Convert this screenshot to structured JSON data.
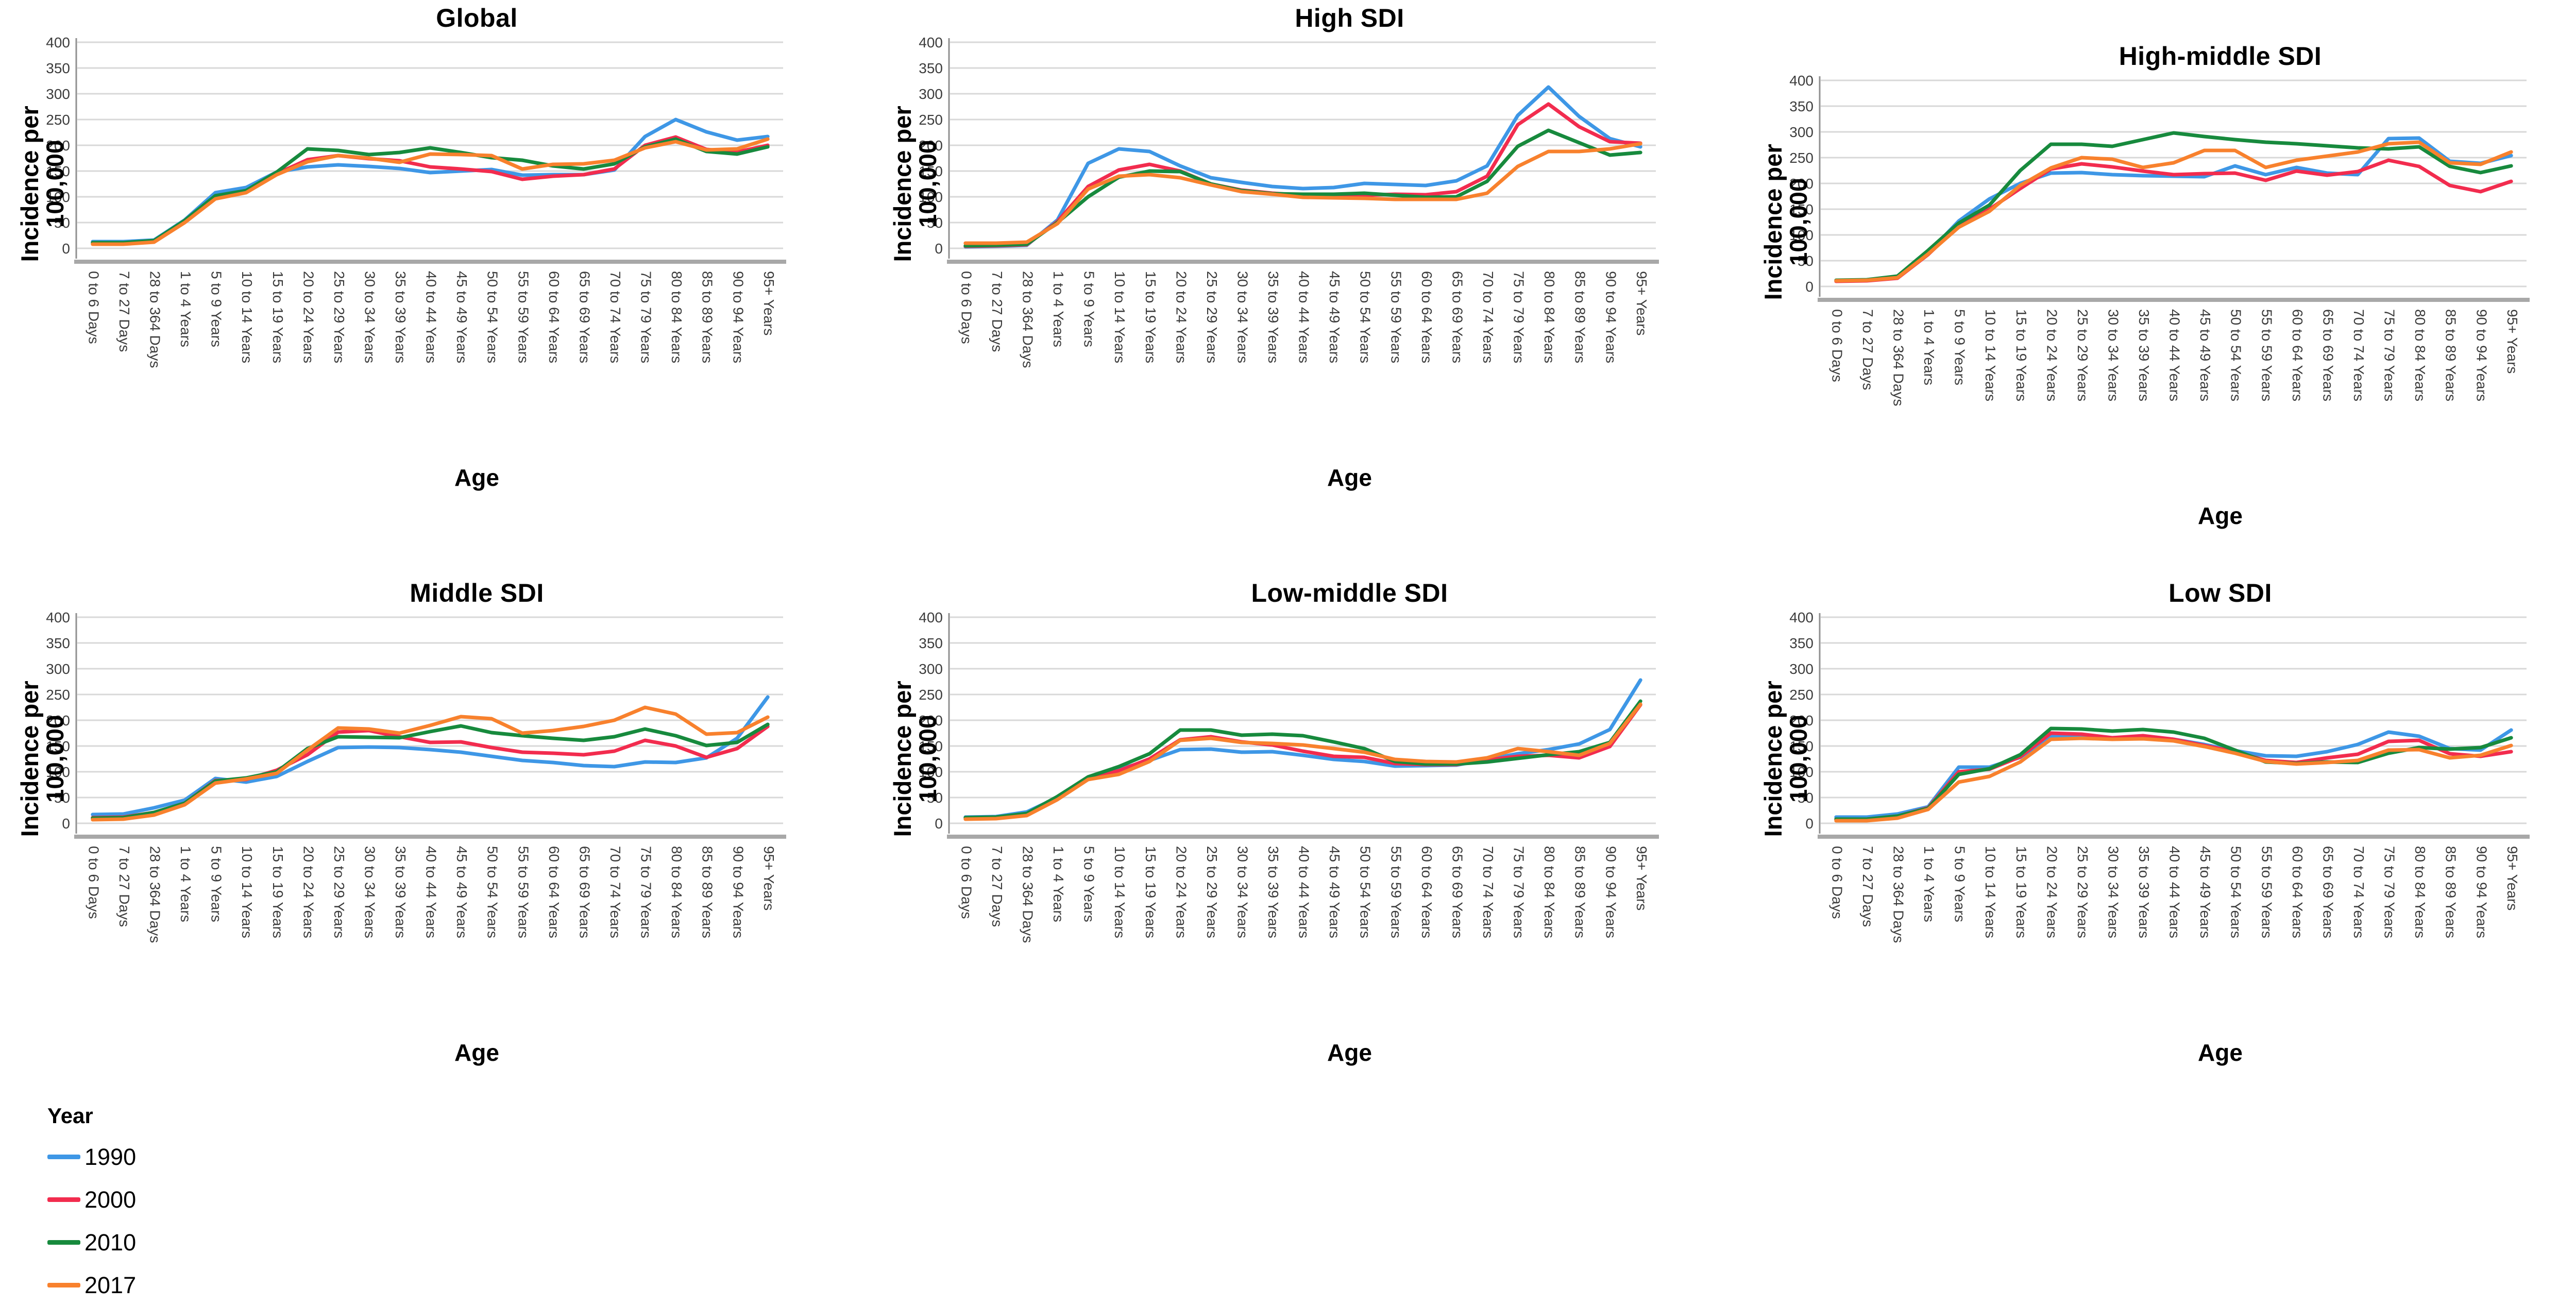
{
  "axes": {
    "ylabel_line1": "Incidence per",
    "ylabel_line2": "100,000",
    "xlabel": "Age"
  },
  "legend": {
    "title": "Year",
    "position": "bottom-left",
    "entries": [
      {
        "label": "1990",
        "color": "#3E97E6"
      },
      {
        "label": "2000",
        "color": "#F22C4E"
      },
      {
        "label": "2010",
        "color": "#178A3D"
      },
      {
        "label": "2017",
        "color": "#F8812D"
      }
    ]
  },
  "chart_data": {
    "type": "line",
    "grid": true,
    "ylim": [
      0,
      400
    ],
    "yticks": [
      0,
      50,
      100,
      150,
      200,
      250,
      300,
      350,
      400
    ],
    "categories": [
      "0 to 6 Days",
      "7 to 27 Days",
      "28 to 364 Days",
      "1 to 4 Years",
      "5 to 9 Years",
      "10 to 14 Years",
      "15 to 19 Years",
      "20 to 24 Years",
      "25 to 29 Years",
      "30 to 34 Years",
      "35 to 39 Years",
      "40 to 44 Years",
      "45 to 49 Years",
      "50 to 54 Years",
      "55 to 59 Years",
      "60 to 64 Years",
      "65 to 69 Years",
      "70 to 74 Years",
      "75 to 79 Years",
      "80 to 84 Years",
      "85 to 89 Years",
      "90 to 94 Years",
      "95+ Years"
    ],
    "panels": [
      {
        "title": "Global",
        "series": [
          {
            "name": "1990",
            "values": [
              13,
              13,
              16,
              55,
              108,
              118,
              148,
              158,
              162,
              159,
              155,
              147,
              150,
              153,
              142,
              143,
              143,
              152,
              217,
              250,
              226,
              210,
              217
            ]
          },
          {
            "name": "2000",
            "values": [
              10,
              10,
              14,
              53,
              100,
              112,
              145,
              172,
              180,
              174,
              170,
              158,
              154,
              149,
              134,
              140,
              143,
              154,
              200,
              216,
              192,
              187,
              200
            ]
          },
          {
            "name": "2010",
            "values": [
              11,
              11,
              15,
              54,
              102,
              112,
              148,
              193,
              190,
              182,
              186,
              195,
              186,
              176,
              171,
              160,
              154,
              164,
              197,
              212,
              188,
              183,
              197
            ]
          },
          {
            "name": "2017",
            "values": [
              8,
              8,
              12,
              50,
              96,
              108,
              143,
              168,
              180,
              175,
              167,
              183,
              182,
              180,
              154,
              163,
              164,
              171,
              195,
              207,
              191,
              193,
              212
            ]
          }
        ]
      },
      {
        "title": "High SDI",
        "series": [
          {
            "name": "1990",
            "values": [
              3,
              4,
              6,
              55,
              165,
              193,
              188,
              160,
              137,
              128,
              120,
              116,
              118,
              126,
              124,
              122,
              131,
              160,
              258,
              313,
              256,
              213,
              197
            ]
          },
          {
            "name": "2000",
            "values": [
              4,
              5,
              7,
              52,
              120,
              152,
              163,
              150,
              125,
              113,
              107,
              103,
              103,
              103,
              105,
              104,
              110,
              140,
              240,
              280,
              236,
              207,
              204
            ]
          },
          {
            "name": "2010",
            "values": [
              5,
              6,
              8,
              50,
              100,
              138,
              150,
              149,
              125,
              112,
              106,
              105,
              105,
              107,
              103,
              99,
              100,
              130,
              198,
              229,
              205,
              181,
              186
            ]
          },
          {
            "name": "2017",
            "values": [
              10,
              10,
              12,
              48,
              115,
              140,
              143,
              137,
              123,
              110,
              105,
              99,
              98,
              97,
              95,
              95,
              95,
              107,
              159,
              188,
              188,
              193,
              203
            ]
          }
        ]
      },
      {
        "title": "High-middle SDI",
        "series": [
          {
            "name": "1990",
            "values": [
              11,
              12,
              18,
              65,
              127,
              170,
              200,
              220,
              221,
              217,
              215,
              214,
              213,
              234,
              217,
              231,
              220,
              217,
              287,
              288,
              243,
              239,
              254
            ]
          },
          {
            "name": "2000",
            "values": [
              10,
              11,
              16,
              62,
              118,
              150,
              190,
              228,
              238,
              232,
              224,
              217,
              219,
              220,
              206,
              224,
              216,
              223,
              245,
              233,
              196,
              184,
              204
            ]
          },
          {
            "name": "2010",
            "values": [
              12,
              13,
              20,
              70,
              123,
              158,
              225,
              276,
              276,
              272,
              285,
              298,
              291,
              285,
              280,
              277,
              273,
              269,
              267,
              271,
              233,
              221,
              234
            ]
          },
          {
            "name": "2017",
            "values": [
              11,
              12,
              17,
              63,
              115,
              146,
              196,
              230,
              250,
              247,
              231,
              240,
              264,
              264,
              231,
              245,
              253,
              261,
              277,
              280,
              240,
              237,
              261
            ]
          }
        ]
      },
      {
        "title": "Middle SDI",
        "series": [
          {
            "name": "1990",
            "values": [
              17,
              18,
              30,
              45,
              87,
              80,
              91,
              120,
              147,
              148,
              147,
              143,
              138,
              130,
              122,
              118,
              112,
              110,
              119,
              118,
              127,
              165,
              245
            ]
          },
          {
            "name": "2000",
            "values": [
              11,
              12,
              21,
              39,
              83,
              85,
              103,
              133,
              177,
              180,
              168,
              157,
              158,
              147,
              138,
              136,
              133,
              140,
              161,
              150,
              128,
              145,
              188
            ]
          },
          {
            "name": "2010",
            "values": [
              10,
              11,
              21,
              39,
              82,
              88,
              100,
              145,
              168,
              167,
              166,
              178,
              189,
              176,
              170,
              165,
              161,
              168,
              183,
              170,
              151,
              157,
              192
            ]
          },
          {
            "name": "2017",
            "values": [
              7,
              8,
              16,
              36,
              78,
              86,
              97,
              142,
              185,
              183,
              175,
              190,
              207,
              203,
              175,
              180,
              188,
              200,
              225,
              212,
              173,
              176,
              206
            ]
          }
        ]
      },
      {
        "title": "Low-middle SDI",
        "series": [
          {
            "name": "1990",
            "values": [
              12,
              13,
              22,
              50,
              85,
              105,
              122,
              143,
              144,
              138,
              139,
              132,
              124,
              120,
              111,
              112,
              113,
              124,
              135,
              143,
              154,
              182,
              278
            ]
          },
          {
            "name": "2000",
            "values": [
              10,
              11,
              18,
              48,
              88,
              102,
              125,
              162,
              168,
              158,
              152,
              140,
              130,
              128,
              116,
              114,
              114,
              123,
              130,
              132,
              127,
              149,
              230
            ]
          },
          {
            "name": "2010",
            "values": [
              11,
              12,
              19,
              52,
              90,
              110,
              135,
              181,
              181,
              171,
              173,
              170,
              158,
              145,
              120,
              115,
              115,
              119,
              126,
              133,
              139,
              157,
              237
            ]
          },
          {
            "name": "2017",
            "values": [
              8,
              9,
              15,
              46,
              85,
              95,
              120,
              161,
              165,
              157,
              155,
              152,
              145,
              138,
              124,
              120,
              119,
              127,
              145,
              139,
              132,
              155,
              231
            ]
          }
        ]
      },
      {
        "title": "Low SDI",
        "series": [
          {
            "name": "1990",
            "values": [
              12,
              12,
              18,
              32,
              109,
              109,
              128,
              169,
              169,
              166,
              168,
              163,
              153,
              141,
              131,
              130,
              139,
              153,
              177,
              169,
              145,
              142,
              181
            ]
          },
          {
            "name": "2000",
            "values": [
              8,
              8,
              14,
              30,
              100,
              105,
              129,
              175,
              173,
              166,
              170,
              163,
              151,
              139,
              122,
              118,
              127,
              134,
              159,
              161,
              135,
              130,
              139
            ]
          },
          {
            "name": "2010",
            "values": [
              8,
              8,
              14,
              29,
              95,
              106,
              133,
              184,
              183,
              179,
              182,
              177,
              165,
              142,
              119,
              116,
              119,
              118,
              136,
              147,
              144,
              147,
              166
            ]
          },
          {
            "name": "2017",
            "values": [
              5,
              5,
              10,
              27,
              80,
              91,
              119,
              163,
              165,
              163,
              164,
              160,
              149,
              136,
              120,
              115,
              118,
              122,
              142,
              143,
              127,
              132,
              151
            ]
          }
        ]
      }
    ]
  },
  "style": {
    "grid_color": "#D8D8D8",
    "axis_color": "#A8A8A8",
    "spine_color": "#8F8F8F",
    "tick_text_color": "#3C3C3C"
  }
}
